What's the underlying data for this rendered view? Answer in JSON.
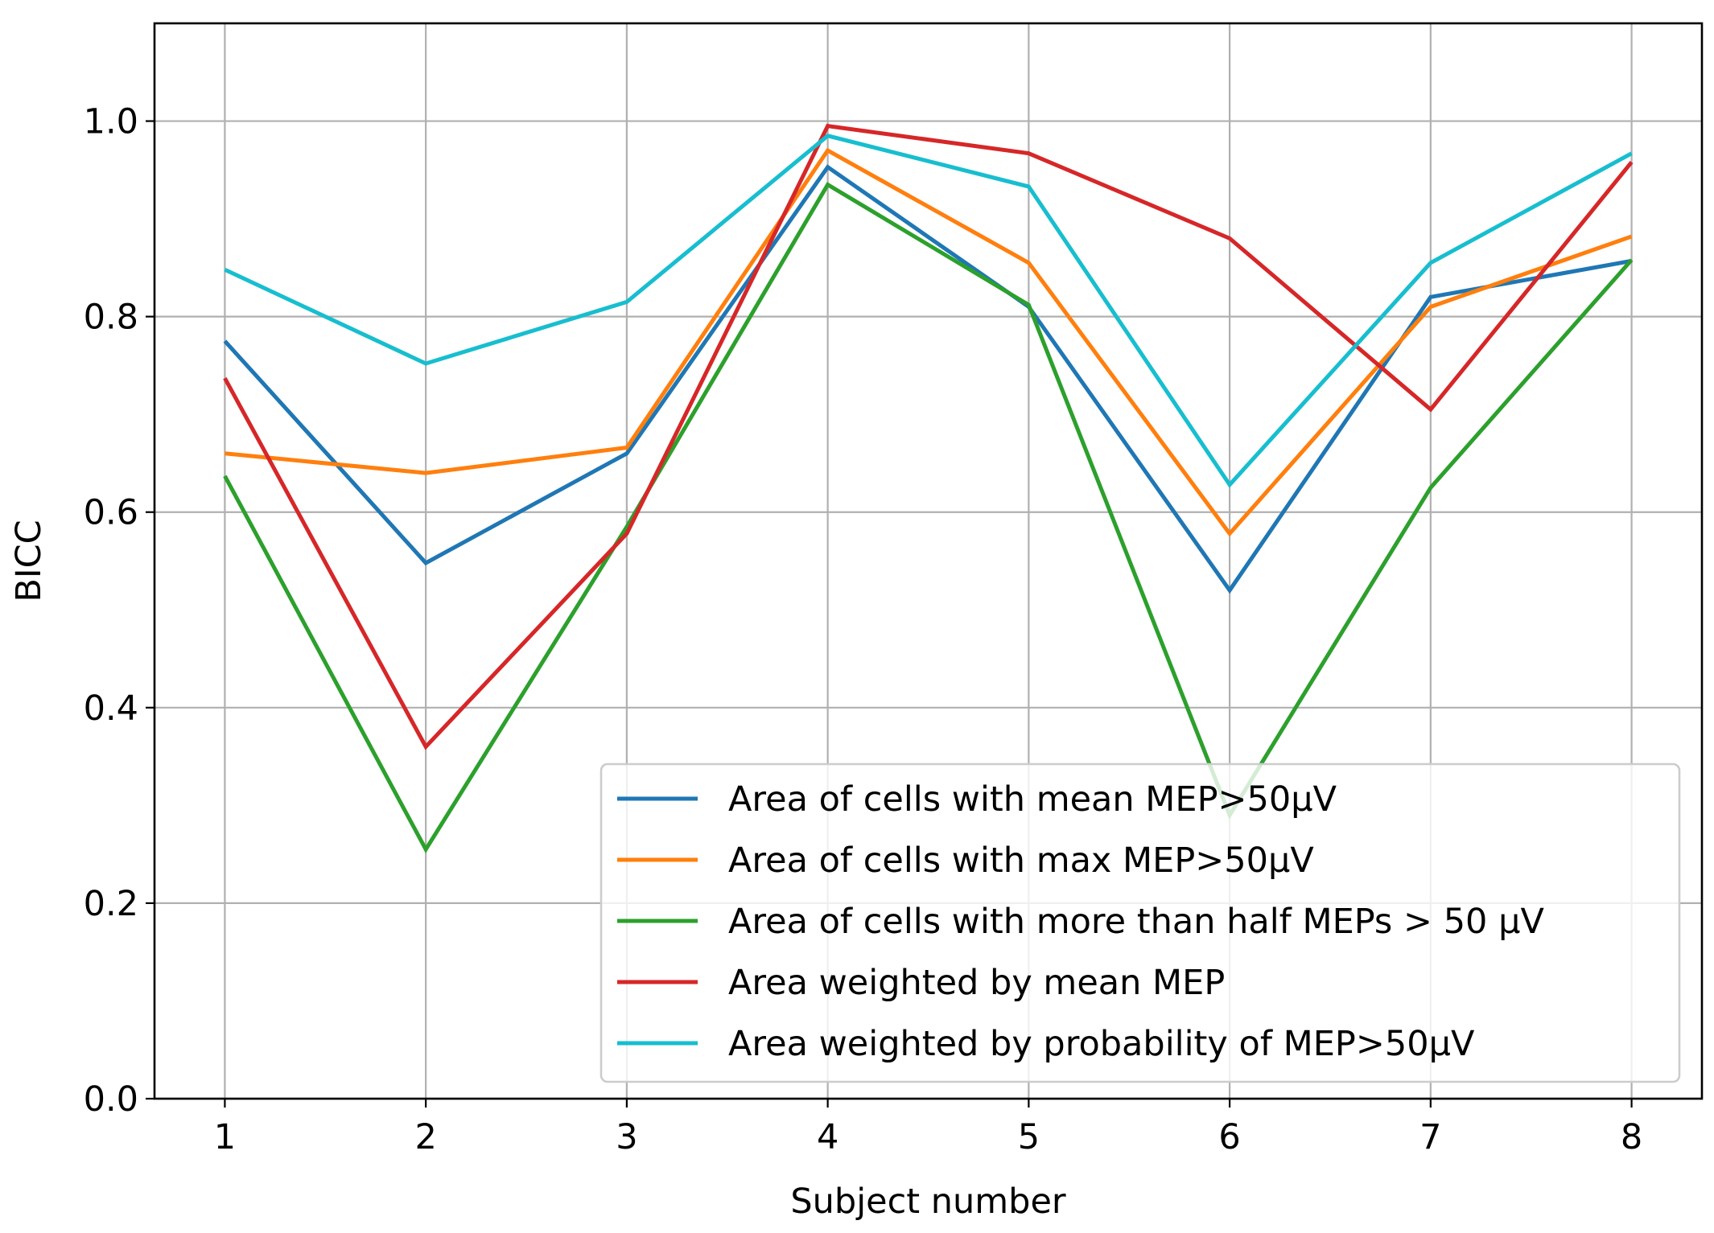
{
  "chart_data": {
    "type": "line",
    "title": "",
    "xlabel": "Subject number",
    "ylabel": "BICC",
    "x": [
      1,
      2,
      3,
      4,
      5,
      6,
      7,
      8
    ],
    "xlim": [
      0.65,
      8.35
    ],
    "ylim": [
      0.0,
      1.1
    ],
    "xticks": [
      "1",
      "2",
      "3",
      "4",
      "5",
      "6",
      "7",
      "8"
    ],
    "yticks": [
      "0.0",
      "0.2",
      "0.4",
      "0.6",
      "0.8",
      "1.0"
    ],
    "grid": true,
    "legend_position": "lower-right",
    "series": [
      {
        "name": "Area of cells with mean MEP>50μV",
        "color": "#1f77b4",
        "values": [
          0.775,
          0.548,
          0.66,
          0.953,
          0.81,
          0.52,
          0.82,
          0.857
        ]
      },
      {
        "name": "Area of cells with max MEP>50μV",
        "color": "#ff7f0e",
        "values": [
          0.66,
          0.64,
          0.666,
          0.97,
          0.855,
          0.578,
          0.81,
          0.882
        ]
      },
      {
        "name": "Area of cells with more than half MEPs > 50 μV",
        "color": "#2ca02c",
        "values": [
          0.637,
          0.255,
          0.585,
          0.935,
          0.812,
          0.29,
          0.625,
          0.858
        ]
      },
      {
        "name": "Area weighted by mean MEP",
        "color": "#d62728",
        "values": [
          0.737,
          0.36,
          0.578,
          0.995,
          0.967,
          0.88,
          0.705,
          0.958
        ]
      },
      {
        "name": "Area weighted by probability of MEP>50μV",
        "color": "#17becf",
        "values": [
          0.848,
          0.752,
          0.815,
          0.985,
          0.933,
          0.628,
          0.855,
          0.967
        ]
      }
    ]
  }
}
